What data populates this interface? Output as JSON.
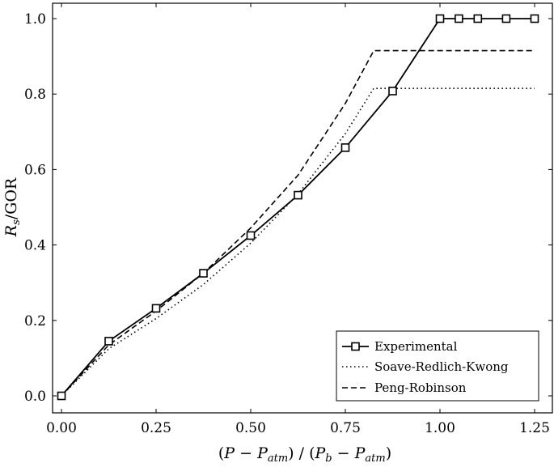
{
  "chart_data": {
    "type": "line",
    "title": "",
    "xlabel": "(P − P_atm) / (P_b − P_atm)",
    "ylabel": "R_s/GOR",
    "xlim": [
      0.0,
      1.25
    ],
    "ylim": [
      0.0,
      1.0
    ],
    "xticks": [
      "0.00",
      "0.25",
      "0.50",
      "0.75",
      "1.00",
      "1.25"
    ],
    "yticks": [
      "0.0",
      "0.2",
      "0.4",
      "0.6",
      "0.8",
      "1.0"
    ],
    "grid": false,
    "legend_position": "bottom-right",
    "series": [
      {
        "name": "Experimental",
        "style": "solid",
        "marker": "square",
        "x": [
          0.0,
          0.125,
          0.25,
          0.375,
          0.5,
          0.625,
          0.75,
          0.875,
          1.0,
          1.05,
          1.1,
          1.175,
          1.25
        ],
        "y": [
          0.0,
          0.145,
          0.232,
          0.325,
          0.425,
          0.532,
          0.658,
          0.808,
          1.0,
          1.0,
          1.0,
          1.0,
          1.0
        ]
      },
      {
        "name": "Soave-Redlich-Kwong",
        "style": "dotted",
        "marker": "none",
        "x": [
          0.0,
          0.125,
          0.25,
          0.375,
          0.5,
          0.625,
          0.75,
          0.825,
          1.25
        ],
        "y": [
          0.0,
          0.125,
          0.205,
          0.295,
          0.405,
          0.535,
          0.695,
          0.815,
          0.815
        ]
      },
      {
        "name": "Peng-Robinson",
        "style": "dashed",
        "marker": "none",
        "x": [
          0.0,
          0.125,
          0.25,
          0.375,
          0.5,
          0.625,
          0.75,
          0.825,
          1.25
        ],
        "y": [
          0.0,
          0.135,
          0.225,
          0.325,
          0.445,
          0.585,
          0.775,
          0.915,
          0.915
        ]
      }
    ]
  }
}
